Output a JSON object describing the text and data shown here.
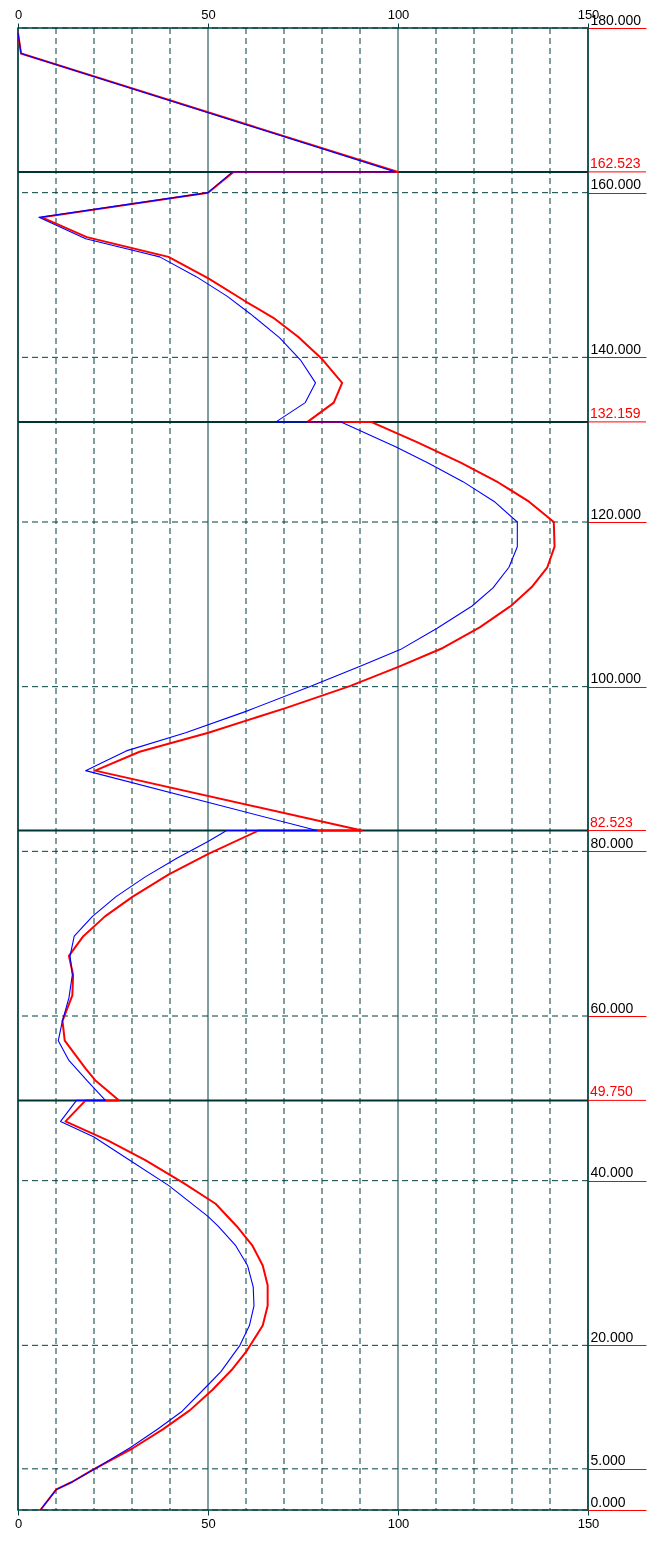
{
  "chart_data": {
    "type": "line",
    "xlim": [
      0,
      150
    ],
    "xticks": [
      0,
      {
        "value": 10,
        "label": null
      },
      {
        "value": 20,
        "label": null
      },
      {
        "value": 30,
        "label": null
      },
      {
        "value": 40,
        "label": null
      },
      50,
      {
        "value": 60,
        "label": null
      },
      {
        "value": 70,
        "label": null
      },
      {
        "value": 80,
        "label": null
      },
      {
        "value": 90,
        "label": null
      },
      100,
      {
        "value": 110,
        "label": null
      },
      {
        "value": 120,
        "label": null
      },
      {
        "value": 130,
        "label": null
      },
      {
        "value": 140,
        "label": null
      },
      150
    ],
    "x2lim": [
      0,
      150
    ],
    "x2ticks": [
      0,
      50,
      100,
      150
    ],
    "ylim": [
      0,
      180
    ],
    "yticks": [
      {
        "value": 0,
        "label": "0.000"
      },
      {
        "value": 5,
        "label": "5.000"
      },
      {
        "value": 20,
        "label": "20.000"
      },
      {
        "value": 40,
        "label": "40.000"
      },
      {
        "value": 60,
        "label": "60.000"
      },
      {
        "value": 80,
        "label": "80.000"
      },
      {
        "value": 100,
        "label": "100.000"
      },
      {
        "value": 120,
        "label": "120.000"
      },
      {
        "value": 140,
        "label": "140.000"
      },
      {
        "value": 160,
        "label": "160.000"
      },
      {
        "value": 180,
        "label": "180.000"
      }
    ],
    "grid": true,
    "ref_lines": [
      {
        "axis": "y",
        "value": 162.523,
        "label": "162.523",
        "color": "#003333"
      },
      {
        "axis": "y",
        "value": 132.159,
        "label": "132.159",
        "color": "#003333"
      },
      {
        "axis": "y",
        "value": 82.523,
        "label": "82.523",
        "color": "#003333"
      },
      {
        "axis": "y",
        "value": 49.75,
        "label": "49.750",
        "color": "#003333"
      }
    ],
    "series": [
      {
        "color": "#0000ff",
        "x": [
          0,
          0.8,
          99.3,
          56.5,
          50,
          5.5,
          17.8,
          37.3,
          46.9,
          55.1,
          61.1,
          68.8,
          74.3,
          78.3,
          75.6,
          67.9,
          85,
          99.5,
          107.8,
          117.1,
          125.3,
          131.4,
          131.4,
          129.2,
          125,
          119.5,
          110.3,
          100.6,
          90.2,
          76.7,
          60,
          44.1,
          28.5,
          17.8,
          78.7,
          54.9,
          50,
          41.9,
          33.5,
          25.8,
          19.6,
          14.8,
          13.7,
          14.3,
          13.4,
          11.7,
          10.6,
          13.4,
          18.3,
          23,
          15.4,
          11.2,
          20,
          29.3,
          39.7,
          49.9,
          52.6,
          57.3,
          60.4,
          61.9,
          62.1,
          60.9,
          58.4,
          53.4,
          49.6,
          43.2,
          36.7,
          29.6,
          20.3,
          14.2,
          10.1,
          5.9
        ],
        "values": [
          179.4,
          176.9,
          162.523,
          162.523,
          160,
          157,
          154.4,
          152.2,
          149.8,
          147.4,
          145.3,
          142.4,
          139.7,
          136.9,
          134.5,
          132.159,
          132.159,
          129.1,
          127.2,
          124.9,
          122.5,
          120,
          117,
          114.5,
          112,
          109.8,
          107.1,
          104.5,
          102.5,
          100,
          97,
          94.4,
          92.2,
          89.8,
          82.523,
          82.523,
          81.2,
          79.2,
          76.9,
          74.5,
          72.1,
          69.7,
          67.3,
          65,
          62.2,
          59.4,
          57,
          54.6,
          52.1,
          49.75,
          49.75,
          47.2,
          45.3,
          42.5,
          39.4,
          35.7,
          34.5,
          32.1,
          29.7,
          27.1,
          24.8,
          22.4,
          20,
          16.8,
          15,
          12,
          9.8,
          7.6,
          5,
          3.4,
          2.5,
          0
        ]
      },
      {
        "color": "#ff0000",
        "x": [
          0,
          0.8,
          100,
          56.7,
          50,
          6.3,
          18.1,
          39.6,
          50.1,
          59.5,
          67.2,
          73.7,
          79.8,
          85.3,
          83.1,
          76.2,
          92.9,
          105,
          116.5,
          126.4,
          134.4,
          141,
          141.2,
          139.3,
          135.2,
          129.7,
          121.5,
          111.8,
          100.1,
          87.5,
          70.4,
          50.1,
          32,
          20.3,
          90.5,
          63.3,
          50.1,
          39.7,
          30.2,
          22.9,
          17.2,
          13.4,
          14.5,
          14.3,
          11.7,
          12.3,
          17.8,
          20.3,
          26.6,
          17.8,
          12.5,
          23.6,
          33.5,
          43.6,
          52,
          57.5,
          61.7,
          64.4,
          65.7,
          65.7,
          64.4,
          60,
          56.2,
          51.2,
          45.2,
          38.1,
          30.2,
          19.4,
          14.2,
          10.1,
          5.9
        ],
        "values": [
          179.4,
          176.9,
          162.523,
          162.523,
          160,
          157,
          154.6,
          152.2,
          149.6,
          146.9,
          144.8,
          142.5,
          139.9,
          136.9,
          134.5,
          132.159,
          132.159,
          129.7,
          127.2,
          124.8,
          122.5,
          120,
          117,
          114.5,
          112.1,
          109.8,
          107.2,
          104.7,
          102.4,
          100.1,
          97.4,
          94.4,
          92.1,
          89.8,
          82.523,
          82.523,
          79.7,
          77.2,
          74.5,
          72.1,
          69.7,
          67.3,
          65,
          62.5,
          59.4,
          57,
          53.6,
          52.2,
          49.75,
          49.75,
          47.2,
          44.9,
          42.5,
          39.7,
          37.2,
          34.5,
          32.1,
          29.7,
          27.3,
          24.8,
          22.4,
          19.2,
          17,
          14.6,
          12.1,
          9.8,
          7.5,
          4.8,
          3.4,
          2.5,
          0
        ]
      }
    ]
  }
}
